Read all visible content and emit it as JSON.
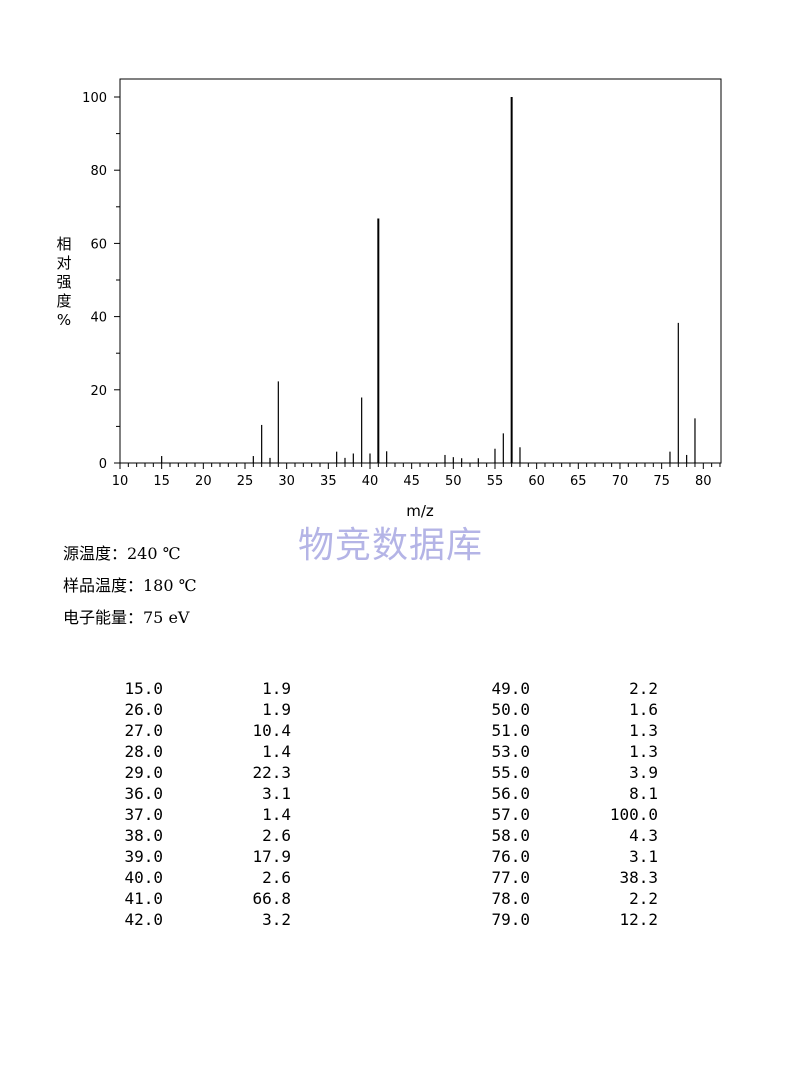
{
  "chart_data": {
    "type": "bar",
    "xlabel": "m/z",
    "ylabel": "相对强度 %",
    "xlim": [
      10,
      82
    ],
    "ylim": [
      0,
      105
    ],
    "xticks": [
      10,
      15,
      20,
      25,
      30,
      35,
      40,
      45,
      50,
      55,
      60,
      65,
      70,
      75,
      80
    ],
    "yticks": [
      0,
      20,
      40,
      60,
      80,
      100
    ],
    "grid": false,
    "peaks": [
      {
        "mz": 15,
        "abundance": 1.9
      },
      {
        "mz": 26,
        "abundance": 1.9
      },
      {
        "mz": 27,
        "abundance": 10.4
      },
      {
        "mz": 28,
        "abundance": 1.4
      },
      {
        "mz": 29,
        "abundance": 22.3
      },
      {
        "mz": 36,
        "abundance": 3.1
      },
      {
        "mz": 37,
        "abundance": 1.4
      },
      {
        "mz": 38,
        "abundance": 2.6
      },
      {
        "mz": 39,
        "abundance": 17.9
      },
      {
        "mz": 40,
        "abundance": 2.6
      },
      {
        "mz": 41,
        "abundance": 66.8
      },
      {
        "mz": 42,
        "abundance": 3.2
      },
      {
        "mz": 49,
        "abundance": 2.2
      },
      {
        "mz": 50,
        "abundance": 1.6
      },
      {
        "mz": 51,
        "abundance": 1.3
      },
      {
        "mz": 53,
        "abundance": 1.3
      },
      {
        "mz": 55,
        "abundance": 3.9
      },
      {
        "mz": 56,
        "abundance": 8.1
      },
      {
        "mz": 57,
        "abundance": 100.0
      },
      {
        "mz": 58,
        "abundance": 4.3
      },
      {
        "mz": 76,
        "abundance": 3.1
      },
      {
        "mz": 77,
        "abundance": 38.3
      },
      {
        "mz": 78,
        "abundance": 2.2
      },
      {
        "mz": 79,
        "abundance": 12.2
      }
    ]
  },
  "watermark": "物竞数据库",
  "conditions": {
    "source_temp": "源温度：240 ℃",
    "sample_temp": "样品温度：180 ℃",
    "electron_energy": "电子能量：75 eV"
  },
  "table": {
    "left": [
      {
        "mz": "15.0",
        "ab": "1.9"
      },
      {
        "mz": "26.0",
        "ab": "1.9"
      },
      {
        "mz": "27.0",
        "ab": "10.4"
      },
      {
        "mz": "28.0",
        "ab": "1.4"
      },
      {
        "mz": "29.0",
        "ab": "22.3"
      },
      {
        "mz": "36.0",
        "ab": "3.1"
      },
      {
        "mz": "37.0",
        "ab": "1.4"
      },
      {
        "mz": "38.0",
        "ab": "2.6"
      },
      {
        "mz": "39.0",
        "ab": "17.9"
      },
      {
        "mz": "40.0",
        "ab": "2.6"
      },
      {
        "mz": "41.0",
        "ab": "66.8"
      },
      {
        "mz": "42.0",
        "ab": "3.2"
      }
    ],
    "right": [
      {
        "mz": "49.0",
        "ab": "2.2"
      },
      {
        "mz": "50.0",
        "ab": "1.6"
      },
      {
        "mz": "51.0",
        "ab": "1.3"
      },
      {
        "mz": "53.0",
        "ab": "1.3"
      },
      {
        "mz": "55.0",
        "ab": "3.9"
      },
      {
        "mz": "56.0",
        "ab": "8.1"
      },
      {
        "mz": "57.0",
        "ab": "100.0"
      },
      {
        "mz": "58.0",
        "ab": "4.3"
      },
      {
        "mz": "76.0",
        "ab": "3.1"
      },
      {
        "mz": "77.0",
        "ab": "38.3"
      },
      {
        "mz": "78.0",
        "ab": "2.2"
      },
      {
        "mz": "79.0",
        "ab": "12.2"
      }
    ]
  }
}
